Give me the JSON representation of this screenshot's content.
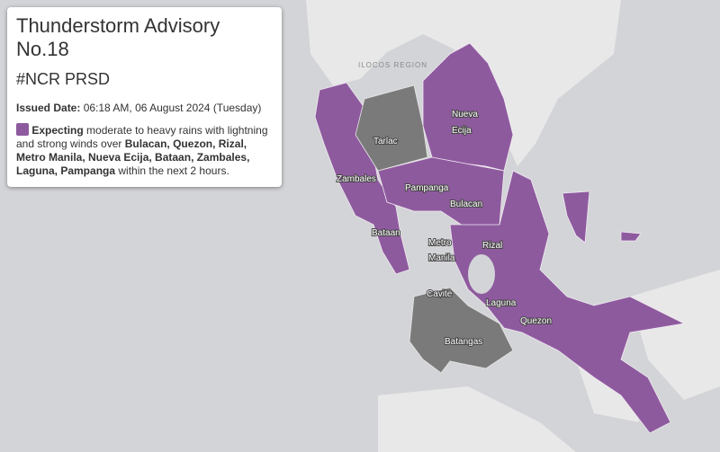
{
  "advisory": {
    "title": "Thunderstorm Advisory No.18",
    "subtitle": "#NCR PRSD",
    "issued_label": "Issued Date:",
    "issued_value": "06:18 AM, 06 August 2024 (Tuesday)",
    "message": [
      "Expecting",
      "moderate to heavy rains with lightning and strong winds over",
      "Bulacan, Quezon, Rizal, Metro Manila, Nueva Ecija, Bataan, Zambales, Laguna, Pampanga",
      "within the next 2 hours."
    ]
  },
  "map": {
    "region_label": "ILOCOS REGION",
    "provinces": [
      {
        "lines": [
          "Tarlac"
        ]
      },
      {
        "lines": [
          "Nueva",
          "Ecija"
        ]
      },
      {
        "lines": [
          "Zambales"
        ]
      },
      {
        "lines": [
          "Pampanga"
        ]
      },
      {
        "lines": [
          "Bulacan"
        ]
      },
      {
        "lines": [
          "Bataan"
        ]
      },
      {
        "lines": [
          "Metro",
          "Manila"
        ]
      },
      {
        "lines": [
          "Rizal"
        ]
      },
      {
        "lines": [
          "Cavite"
        ]
      },
      {
        "lines": [
          "Laguna"
        ]
      },
      {
        "lines": [
          "Quezon"
        ]
      },
      {
        "lines": [
          "Batangas"
        ]
      }
    ]
  }
}
